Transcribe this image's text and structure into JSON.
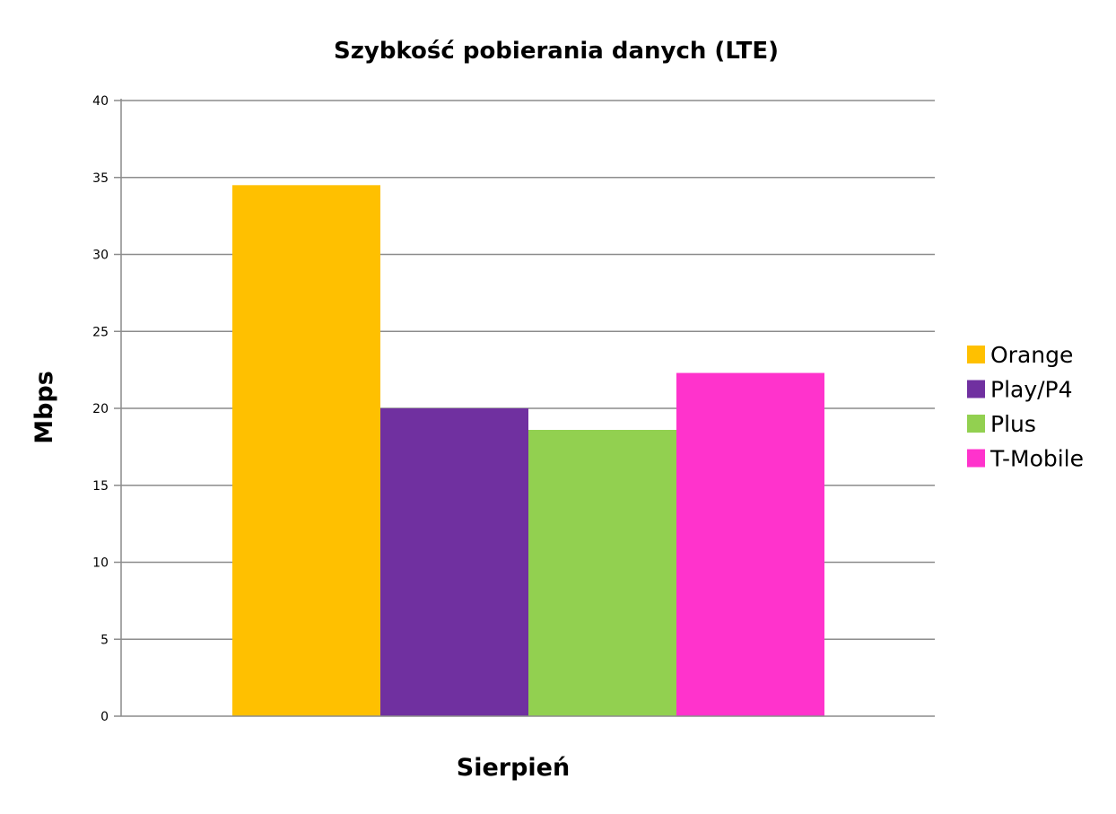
{
  "chart_data": {
    "type": "bar",
    "title": "Szybkość pobierania danych (LTE)",
    "xlabel": "Sierpień",
    "ylabel": "Mbps",
    "categories": [
      "Sierpień"
    ],
    "series": [
      {
        "name": "Orange",
        "values": [
          34.5
        ],
        "color": "#FFC000"
      },
      {
        "name": "Play/P4",
        "values": [
          20.0
        ],
        "color": "#7030A0"
      },
      {
        "name": "Plus",
        "values": [
          18.6
        ],
        "color": "#92D050"
      },
      {
        "name": "T-Mobile",
        "values": [
          22.3
        ],
        "color": "#FF33CC"
      }
    ],
    "ylim": [
      0,
      40
    ],
    "yticks": [
      "0",
      "5",
      "10",
      "15",
      "20",
      "25",
      "30",
      "35",
      "40"
    ],
    "grid": true,
    "legend": "right"
  }
}
